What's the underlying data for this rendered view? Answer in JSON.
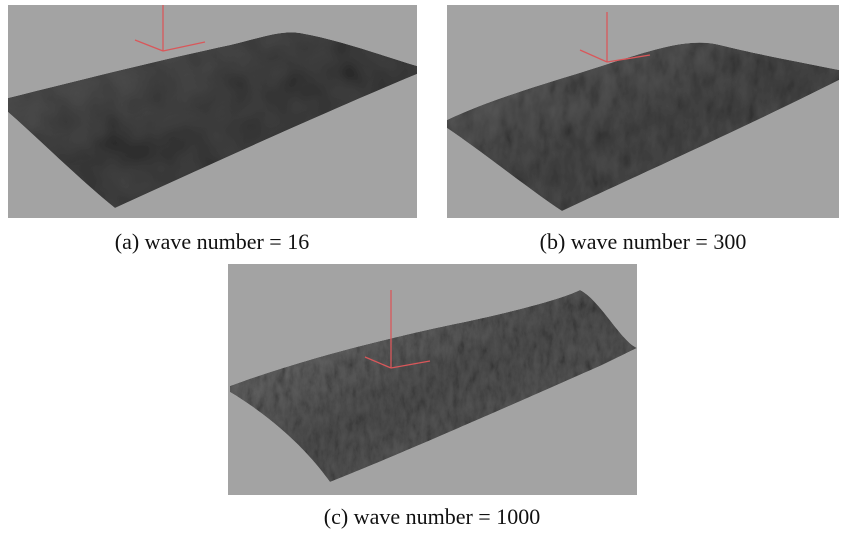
{
  "figure": {
    "panels": [
      {
        "caption": "(a) wave number = 16"
      },
      {
        "caption": "(b) wave number = 300"
      },
      {
        "caption": "(c) wave number = 1000"
      }
    ]
  }
}
